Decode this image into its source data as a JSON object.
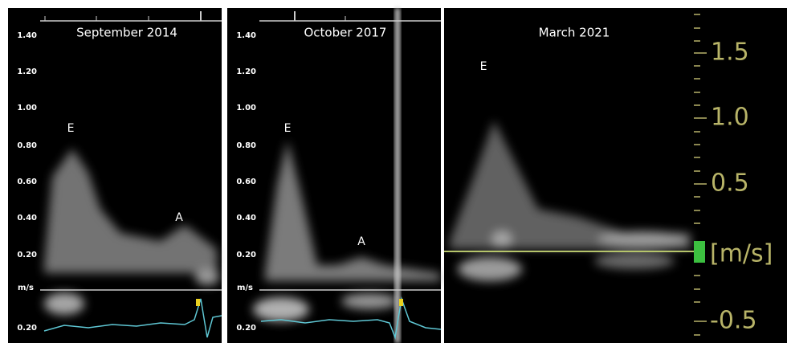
{
  "panels": [
    {
      "title": "September 2014",
      "ticks": [
        "1.40",
        "1.20",
        "1.00",
        "0.80",
        "0.60",
        "0.40",
        "0.20"
      ],
      "unit": "m/s",
      "lower_tick": "0.20",
      "labels": [
        "E",
        "A"
      ]
    },
    {
      "title": "October 2017",
      "ticks": [
        "1.40",
        "1.20",
        "1.00",
        "0.80",
        "0.60",
        "0.40",
        "0.20"
      ],
      "unit": "m/s",
      "lower_tick": "0.20",
      "labels": [
        "E",
        "A"
      ]
    },
    {
      "title": "March 2021",
      "ticks": [
        "1.5",
        "1.0",
        "0.5",
        "[m/s]",
        "-0.5"
      ],
      "labels": [
        "E"
      ]
    }
  ]
}
